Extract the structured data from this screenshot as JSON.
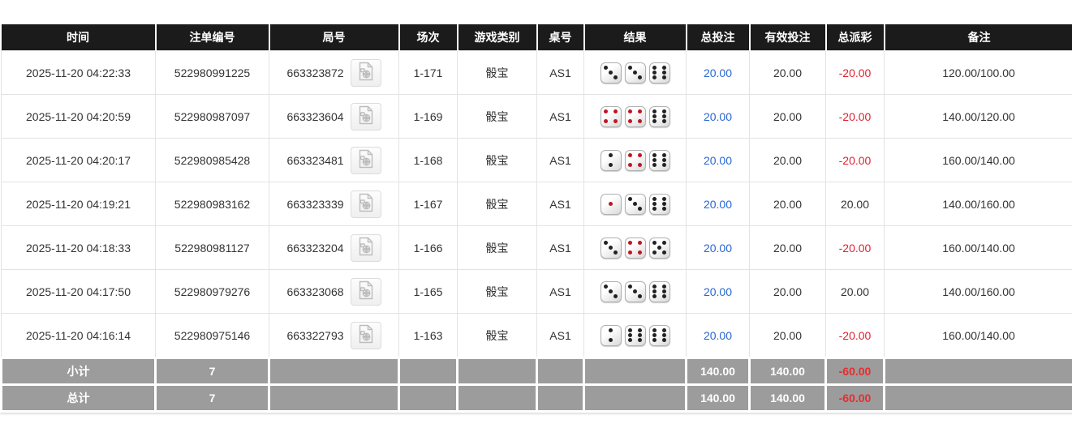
{
  "table": {
    "columns": [
      {
        "label": "时间"
      },
      {
        "label": "注单编号"
      },
      {
        "label": "局号"
      },
      {
        "label": "场次"
      },
      {
        "label": "游戏类别"
      },
      {
        "label": "桌号"
      },
      {
        "label": "结果"
      },
      {
        "label": "总投注"
      },
      {
        "label": "有效投注"
      },
      {
        "label": "总派彩"
      },
      {
        "label": "备注"
      }
    ],
    "rows": [
      {
        "time": "2025-11-20 04:22:33",
        "bet_no": "522980991225",
        "round_no": "663323872",
        "session": "1-171",
        "game_type": "骰宝",
        "table_no": "AS1",
        "dice": [
          3,
          3,
          6
        ],
        "total_bet": "20.00",
        "valid_bet": "20.00",
        "total_payout": "-20.00",
        "remark": "120.00/100.00"
      },
      {
        "time": "2025-11-20 04:20:59",
        "bet_no": "522980987097",
        "round_no": "663323604",
        "session": "1-169",
        "game_type": "骰宝",
        "table_no": "AS1",
        "dice": [
          4,
          4,
          6
        ],
        "total_bet": "20.00",
        "valid_bet": "20.00",
        "total_payout": "-20.00",
        "remark": "140.00/120.00"
      },
      {
        "time": "2025-11-20 04:20:17",
        "bet_no": "522980985428",
        "round_no": "663323481",
        "session": "1-168",
        "game_type": "骰宝",
        "table_no": "AS1",
        "dice": [
          2,
          4,
          6
        ],
        "total_bet": "20.00",
        "valid_bet": "20.00",
        "total_payout": "-20.00",
        "remark": "160.00/140.00"
      },
      {
        "time": "2025-11-20 04:19:21",
        "bet_no": "522980983162",
        "round_no": "663323339",
        "session": "1-167",
        "game_type": "骰宝",
        "table_no": "AS1",
        "dice": [
          1,
          3,
          6
        ],
        "total_bet": "20.00",
        "valid_bet": "20.00",
        "total_payout": "20.00",
        "remark": "140.00/160.00"
      },
      {
        "time": "2025-11-20 04:18:33",
        "bet_no": "522980981127",
        "round_no": "663323204",
        "session": "1-166",
        "game_type": "骰宝",
        "table_no": "AS1",
        "dice": [
          3,
          4,
          5
        ],
        "total_bet": "20.00",
        "valid_bet": "20.00",
        "total_payout": "-20.00",
        "remark": "160.00/140.00"
      },
      {
        "time": "2025-11-20 04:17:50",
        "bet_no": "522980979276",
        "round_no": "663323068",
        "session": "1-165",
        "game_type": "骰宝",
        "table_no": "AS1",
        "dice": [
          3,
          3,
          6
        ],
        "total_bet": "20.00",
        "valid_bet": "20.00",
        "total_payout": "20.00",
        "remark": "140.00/160.00"
      },
      {
        "time": "2025-11-20 04:16:14",
        "bet_no": "522980975146",
        "round_no": "663322793",
        "session": "1-163",
        "game_type": "骰宝",
        "table_no": "AS1",
        "dice": [
          2,
          6,
          6
        ],
        "total_bet": "20.00",
        "valid_bet": "20.00",
        "total_payout": "-20.00",
        "remark": "160.00/140.00"
      }
    ],
    "subtotal": {
      "label": "小计",
      "count": "7",
      "total_bet": "140.00",
      "valid_bet": "140.00",
      "total_payout": "-60.00"
    },
    "total": {
      "label": "总计",
      "count": "7",
      "total_bet": "140.00",
      "valid_bet": "140.00",
      "total_payout": "-60.00"
    }
  },
  "icons": {
    "video_replay": "video-file-icon"
  },
  "dice_style": {
    "red_pip_faces": [
      1,
      4
    ],
    "black_pip_color": "#222222",
    "red_pip_color": "#c01722"
  },
  "colors": {
    "header_bg": "#1b1b1b",
    "summary_bg": "#9c9c9c",
    "bet_amount_blue": "#2867d2",
    "negative_red": "#dd2230",
    "summary_negative_red": "#e62e2e",
    "row_border": "#e3e3e3"
  }
}
